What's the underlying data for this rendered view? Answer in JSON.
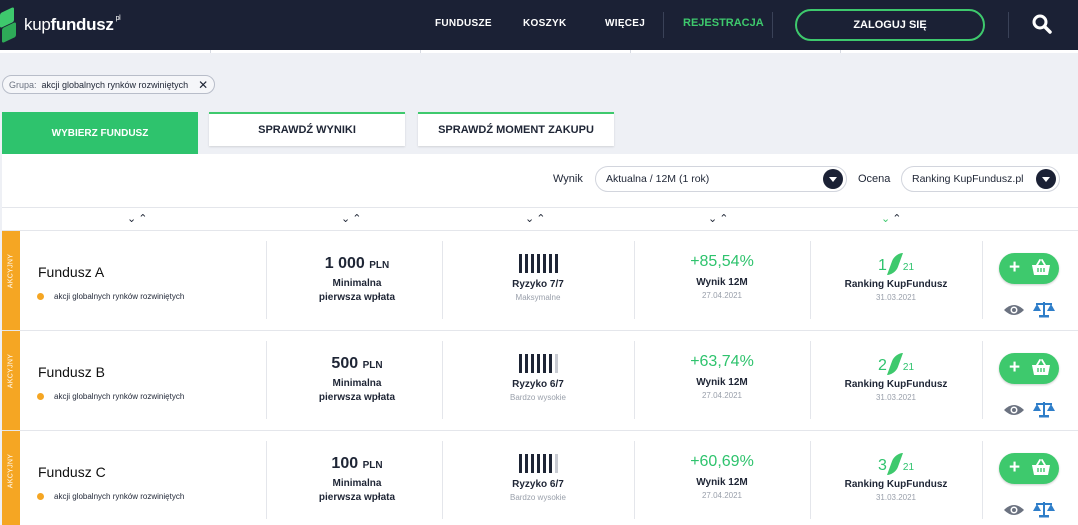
{
  "header": {
    "logo_text_light": "kup",
    "logo_text_bold": "fundusz",
    "logo_sup": "pl",
    "nav": [
      "FUNDUSZE",
      "KOSZYK",
      "WIĘCEJ"
    ],
    "register_label": "REJESTRACJA",
    "login_label": "ZALOGUJ SIĘ",
    "search_icon": "search-icon"
  },
  "filter": {
    "label": "Grupa:",
    "value": "akcji globalnych rynków rozwiniętych",
    "remove_icon": "close-icon"
  },
  "tabs": {
    "active": "WYBIERZ FUNDUSZ",
    "results": "SPRAWDŹ WYNIKI",
    "timing": "SPRAWDŹ MOMENT ZAKUPU"
  },
  "controls": {
    "result_label": "Wynik",
    "result_value": "Aktualna / 12M (1 rok)",
    "rating_label": "Ocena",
    "rating_value": "Ranking KupFundusz.pl"
  },
  "colors": {
    "accent": "#3ec96d",
    "header_bg": "#1b2135",
    "category": "#f5a623"
  },
  "funds": [
    {
      "category": "AKCYJNY",
      "name": "Fundusz A",
      "group": "akcji globalnych rynków rozwiniętych",
      "min_amount": "1 000",
      "currency": "PLN",
      "min_label_1": "Minimalna",
      "min_label_2": "pierwsza wpłata",
      "risk_level": 7,
      "risk_label": "Ryzyko 7/7",
      "risk_desc": "Maksymalne",
      "result": "+85,54%",
      "result_label": "Wynik 12M",
      "result_date": "27.04.2021",
      "rank": "1",
      "rank_total": "21",
      "rank_label": "Ranking KupFundusz",
      "rank_date": "31.03.2021"
    },
    {
      "category": "AKCYJNY",
      "name": "Fundusz B",
      "group": "akcji globalnych rynków rozwiniętych",
      "min_amount": "500",
      "currency": "PLN",
      "min_label_1": "Minimalna",
      "min_label_2": "pierwsza wpłata",
      "risk_level": 6,
      "risk_label": "Ryzyko 6/7",
      "risk_desc": "Bardzo wysokie",
      "result": "+63,74%",
      "result_label": "Wynik 12M",
      "result_date": "27.04.2021",
      "rank": "2",
      "rank_total": "21",
      "rank_label": "Ranking KupFundusz",
      "rank_date": "31.03.2021"
    },
    {
      "category": "AKCYJNY",
      "name": "Fundusz C",
      "group": "akcji globalnych rynków rozwiniętych",
      "min_amount": "100",
      "currency": "PLN",
      "min_label_1": "Minimalna",
      "min_label_2": "pierwsza wpłata",
      "risk_level": 6,
      "risk_label": "Ryzyko 6/7",
      "risk_desc": "Bardzo wysokie",
      "result": "+60,69%",
      "result_label": "Wynik 12M",
      "result_date": "27.04.2021",
      "rank": "3",
      "rank_total": "21",
      "rank_label": "Ranking KupFundusz",
      "rank_date": "31.03.2021"
    }
  ]
}
